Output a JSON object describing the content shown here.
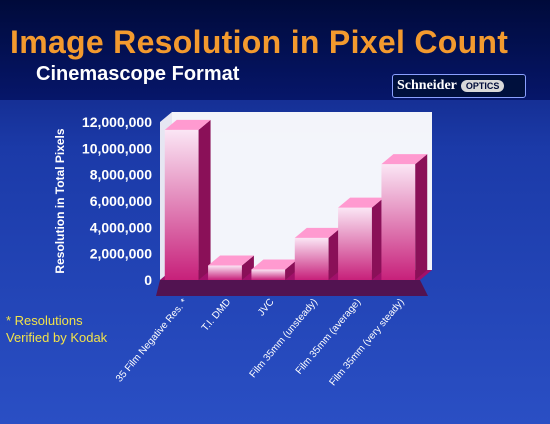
{
  "header": {
    "title": "Image Resolution in Pixel Count",
    "subtitle": "Cinemascope Format",
    "logo_text": "Schneider",
    "logo_tag": "OPTICS"
  },
  "note": {
    "line1": "* Resolutions",
    "line2": "Verified by Kodak"
  },
  "colors": {
    "bar_front_top": "#fbe6f5",
    "bar_front_bottom": "#c7207a",
    "bar_side": "#8a1058",
    "bar_top": "#ff9ad0",
    "floor": "#a1106a",
    "wall": "#ffffff",
    "title": "#f39a2e",
    "note": "#f2e24a"
  },
  "chart_data": {
    "type": "bar",
    "ylabel": "Resolution in Total Pixels",
    "xlabel": "",
    "ylim": [
      0,
      12000000
    ],
    "yticks": [
      "12,000,000",
      "10,000,000",
      "8,000,000",
      "6,000,000",
      "4,000,000",
      "2,000,000",
      "0"
    ],
    "ytick_values": [
      12000000,
      10000000,
      8000000,
      6000000,
      4000000,
      2000000,
      0
    ],
    "categories": [
      "35 Film Negative Res. *",
      "T.I. DMD",
      "JVC",
      "Film 35mm (unsteady)",
      "Film 35mm (average)",
      "Film 35mm (very steady)"
    ],
    "values": [
      11400000,
      1100000,
      800000,
      3200000,
      5500000,
      8800000
    ],
    "grid": false,
    "three_d": true
  }
}
